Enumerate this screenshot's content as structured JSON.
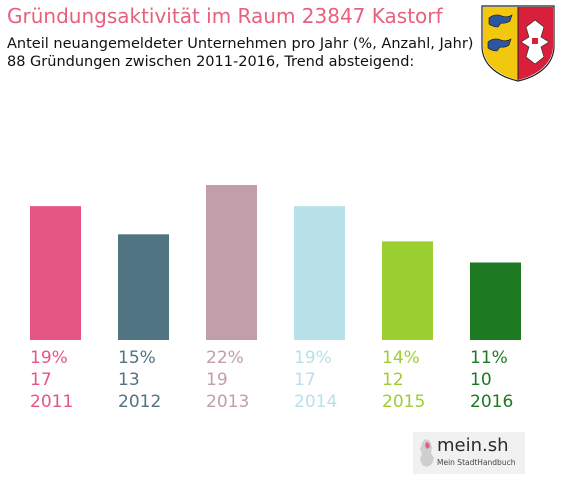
{
  "header": {
    "title": "Gründungsaktivität im Raum 23847 Kastorf",
    "subtitle_line1": "Anteil neuangemeldeter Unternehmen pro Jahr (%, Anzahl, Jahr)",
    "subtitle_line2": "88 Gründungen zwischen 2011-2016, Trend absteigend:"
  },
  "branding": {
    "logo_text": "mein.sh",
    "logo_tagline": "Mein StadtHandbuch"
  },
  "chart_data": {
    "type": "bar",
    "categories": [
      "2011",
      "2012",
      "2013",
      "2014",
      "2015",
      "2016"
    ],
    "values": [
      19,
      15,
      22,
      19,
      14,
      11
    ],
    "counts": [
      17,
      13,
      19,
      17,
      12,
      10
    ],
    "percent_labels": [
      "19%",
      "15%",
      "22%",
      "19%",
      "14%",
      "11%"
    ],
    "colors": [
      "#e55683",
      "#507482",
      "#c19ea9",
      "#b8e1e9",
      "#9ccf31",
      "#1e7a22"
    ],
    "ylim": [
      0,
      22
    ],
    "grid": false,
    "legend": "none"
  }
}
